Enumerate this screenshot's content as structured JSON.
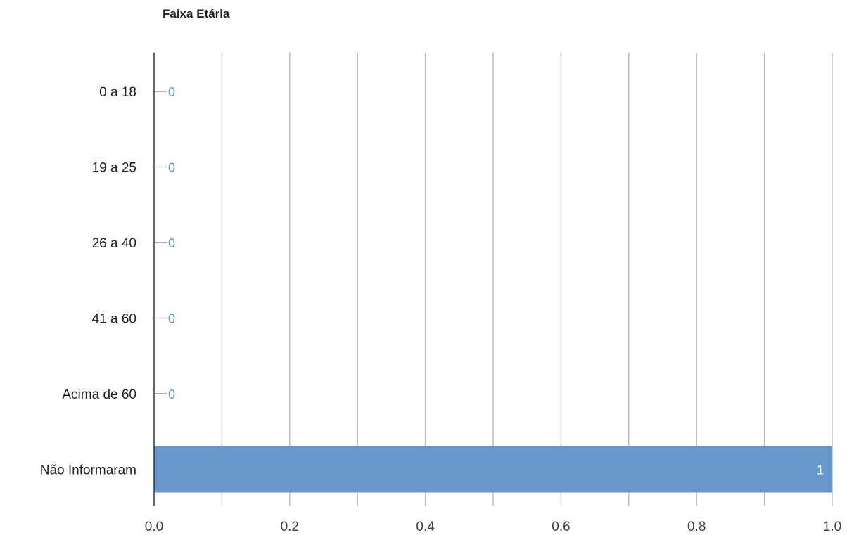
{
  "chart_data": {
    "type": "bar",
    "orientation": "horizontal",
    "title": "Faixa Etária",
    "categories": [
      "0 a 18",
      "19 a 25",
      "26 a 40",
      "41 a 60",
      "Acima de 60",
      "Não Informaram"
    ],
    "values": [
      0,
      0,
      0,
      0,
      0,
      1
    ],
    "data_labels": [
      "0",
      "0",
      "0",
      "0",
      "0",
      "1"
    ],
    "xlim": [
      0,
      1
    ],
    "x_ticks": [
      "0.0",
      "0.2",
      "0.4",
      "0.6",
      "0.8",
      "1.0"
    ],
    "grid": true,
    "legend": "none",
    "colors": {
      "bar": "#6897cc",
      "data_label_outside": "#6897cc",
      "data_label_inside": "#ffffff",
      "gridline": "#bdbdbd",
      "axis": "#333333"
    }
  }
}
